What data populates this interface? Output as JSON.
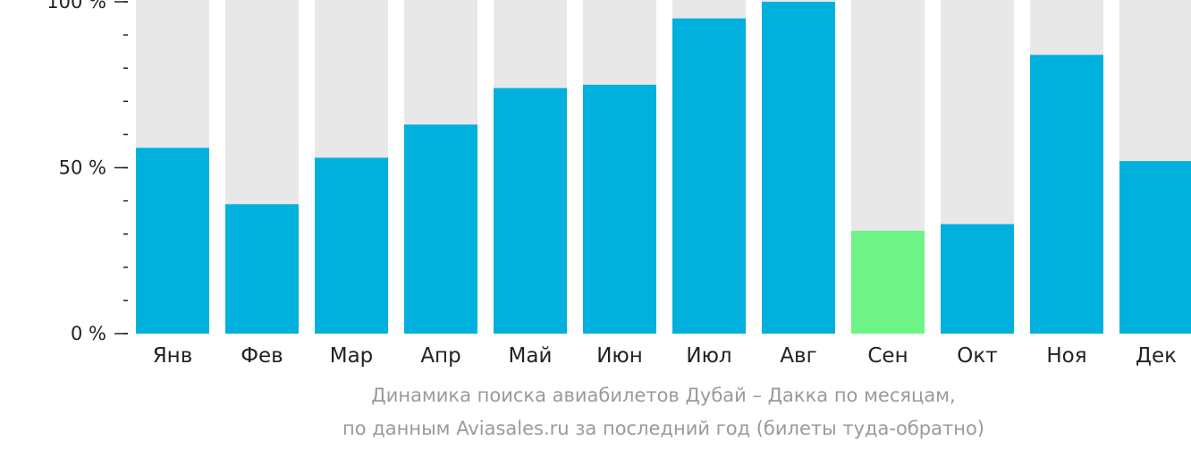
{
  "chart_data": {
    "type": "bar",
    "categories": [
      "Янв",
      "Фев",
      "Мар",
      "Апр",
      "Май",
      "Июн",
      "Июл",
      "Авг",
      "Сен",
      "Окт",
      "Ноя",
      "Дек"
    ],
    "values": [
      56,
      39,
      53,
      63,
      74,
      75,
      95,
      100,
      31,
      33,
      84,
      52
    ],
    "highlighted_category": "Сен",
    "ylim": [
      0,
      100
    ],
    "yticks": [
      {
        "value": 100,
        "label": "100 %"
      },
      {
        "value": 50,
        "label": "50 %"
      },
      {
        "value": 0,
        "label": "0 %"
      }
    ],
    "minor_tick_step": 10,
    "grid": false,
    "title": "",
    "xlabel": "",
    "ylabel": "",
    "colors": {
      "bar": "#00b0dd",
      "highlight": "#6ef386",
      "track": "#e8e8e8",
      "axis": "#222222",
      "tick_label": "#222222",
      "category_label": "#222222",
      "caption": "#9a9a9a"
    }
  },
  "caption": {
    "line1": "Динамика поиска авиабилетов Дубай – Дакка по месяцам,",
    "line2": "по данным Aviasales.ru за последний год (билеты туда-обратно)"
  }
}
